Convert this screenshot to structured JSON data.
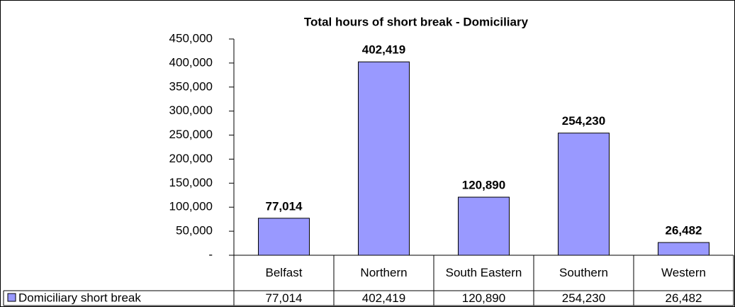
{
  "chart_data": {
    "type": "bar",
    "title": "Total hours of short break - Domiciliary",
    "categories": [
      "Belfast",
      "Northern",
      "South Eastern",
      "Southern",
      "Western"
    ],
    "series": [
      {
        "name": "Domiciliary short break",
        "color": "#9999ff",
        "values": [
          77014,
          402419,
          120890,
          254230,
          26482
        ],
        "value_labels": [
          "77,014",
          "402,419",
          "120,890",
          "254,230",
          "26,482"
        ]
      }
    ],
    "ylim": [
      0,
      450000
    ],
    "yticks": [
      {
        "value": 0,
        "label": "-"
      },
      {
        "value": 50000,
        "label": "50,000"
      },
      {
        "value": 100000,
        "label": "100,000"
      },
      {
        "value": 150000,
        "label": "150,000"
      },
      {
        "value": 200000,
        "label": "200,000"
      },
      {
        "value": 250000,
        "label": "250,000"
      },
      {
        "value": 300000,
        "label": "300,000"
      },
      {
        "value": 350000,
        "label": "350,000"
      },
      {
        "value": 400000,
        "label": "400,000"
      },
      {
        "value": 450000,
        "label": "450,000"
      }
    ],
    "grid": false,
    "data_table": true
  }
}
